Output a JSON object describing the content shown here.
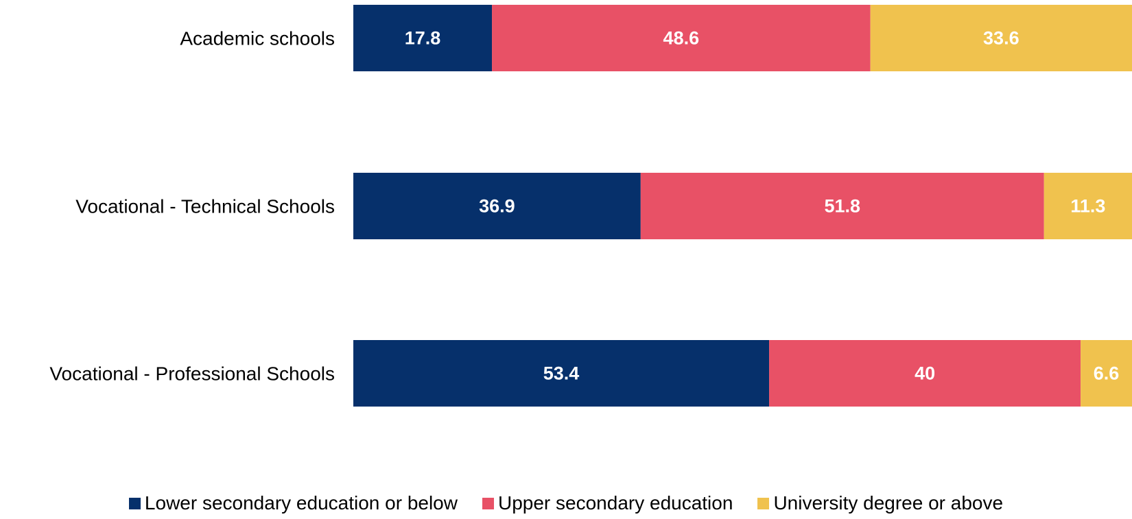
{
  "chart_data": {
    "type": "bar",
    "orientation": "horizontal",
    "stacked": true,
    "title": "",
    "xlabel": "",
    "ylabel": "",
    "xlim": [
      0,
      100
    ],
    "grid": false,
    "legend_position": "bottom",
    "categories": [
      "Academic schools",
      "Vocational - Technical Schools",
      "Vocational - Professional Schools"
    ],
    "series": [
      {
        "name": "Lower secondary education or below",
        "color": "#06306B",
        "values": [
          17.8,
          36.9,
          53.4
        ],
        "labels": [
          "17.8",
          "36.9",
          "53.4"
        ]
      },
      {
        "name": "Upper secondary education",
        "color": "#E85166",
        "values": [
          48.6,
          51.8,
          40
        ],
        "labels": [
          "48.6",
          "51.8",
          "40"
        ]
      },
      {
        "name": "University degree or above",
        "color": "#F0C24E",
        "values": [
          33.6,
          11.3,
          6.6
        ],
        "labels": [
          "33.6",
          "11.3",
          "6.6"
        ]
      }
    ]
  }
}
